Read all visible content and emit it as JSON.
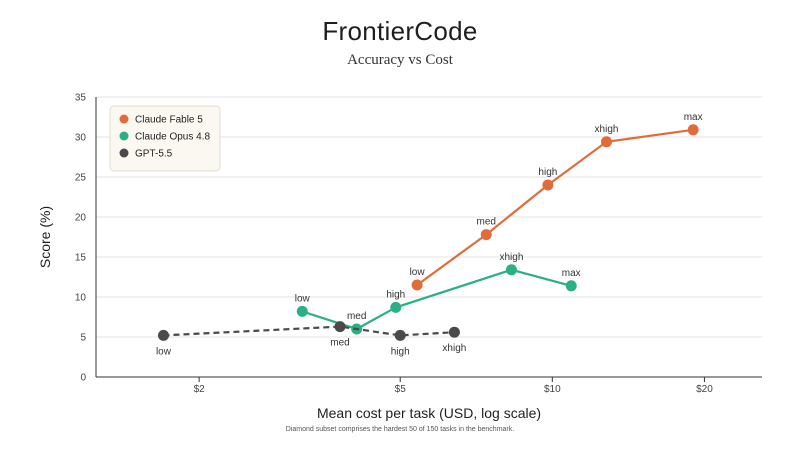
{
  "chart_data": {
    "type": "line",
    "title": "FrontierCode",
    "subtitle": "Accuracy vs Cost",
    "xlabel": "Mean cost per task (USD, log scale)",
    "ylabel": "Score (%)",
    "x_scale": "log",
    "xlim": [
      1.25,
      26
    ],
    "ylim": [
      0,
      35
    ],
    "x_ticks": [
      {
        "value": 2,
        "label": "$2"
      },
      {
        "value": 5,
        "label": "$5"
      },
      {
        "value": 10,
        "label": "$10"
      },
      {
        "value": 20,
        "label": "$20"
      }
    ],
    "y_ticks": [
      0,
      5,
      10,
      15,
      20,
      25,
      30,
      35
    ],
    "grid": "horizontal",
    "legend_position": "top-left",
    "footnote": "Diamond subset comprises the hardest 50 of 150 tasks in the benchmark.",
    "series": [
      {
        "name": "Claude Fable 5",
        "color": "#e06c3c",
        "line_style": "solid",
        "points": [
          {
            "x": 5.4,
            "y": 11.5,
            "label": "low",
            "label_pos": "above"
          },
          {
            "x": 7.4,
            "y": 17.8,
            "label": "med",
            "label_pos": "above"
          },
          {
            "x": 9.8,
            "y": 24.0,
            "label": "high",
            "label_pos": "above"
          },
          {
            "x": 12.8,
            "y": 29.4,
            "label": "xhigh",
            "label_pos": "above"
          },
          {
            "x": 19.0,
            "y": 30.9,
            "label": "max",
            "label_pos": "above"
          }
        ]
      },
      {
        "name": "Claude Opus 4.8",
        "color": "#2bb085",
        "line_style": "solid",
        "points": [
          {
            "x": 3.2,
            "y": 8.2,
            "label": "low",
            "label_pos": "above"
          },
          {
            "x": 4.1,
            "y": 6.0,
            "label": "med",
            "label_pos": "above"
          },
          {
            "x": 4.9,
            "y": 8.7,
            "label": "high",
            "label_pos": "above"
          },
          {
            "x": 8.3,
            "y": 13.4,
            "label": "xhigh",
            "label_pos": "above"
          },
          {
            "x": 10.9,
            "y": 11.4,
            "label": "max",
            "label_pos": "above"
          }
        ]
      },
      {
        "name": "GPT-5.5",
        "color": "#4a4a4a",
        "line_style": "dashed",
        "points": [
          {
            "x": 1.7,
            "y": 5.2,
            "label": "low",
            "label_pos": "below"
          },
          {
            "x": 3.8,
            "y": 6.3,
            "label": "med",
            "label_pos": "below"
          },
          {
            "x": 5.0,
            "y": 5.2,
            "label": "high",
            "label_pos": "below"
          },
          {
            "x": 6.4,
            "y": 5.6,
            "label": "xhigh",
            "label_pos": "below"
          }
        ]
      }
    ]
  }
}
